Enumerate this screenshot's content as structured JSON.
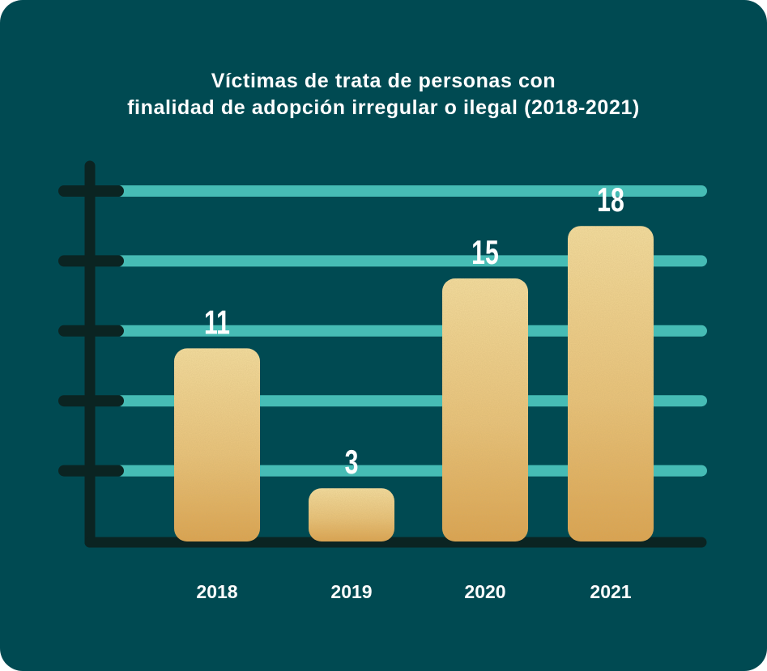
{
  "chart_data": {
    "type": "bar",
    "title_lines": [
      "Víctimas de trata de personas con",
      "finalidad de adopción irregular o ilegal (2018-2021)"
    ],
    "categories": [
      "2018",
      "2019",
      "2020",
      "2021"
    ],
    "values": [
      11,
      3,
      15,
      18
    ],
    "value_labels": [
      "11",
      "3",
      "15",
      "18"
    ],
    "xlabel": "",
    "ylabel": "",
    "ylim": [
      0,
      20
    ],
    "grid": true,
    "gridlines": [
      4,
      8,
      12,
      16,
      20
    ],
    "colors": {
      "background": "#004a52",
      "bar": "#ddaa55",
      "bar_highlight": "#f2d898",
      "gridline": "#46bcb5",
      "axis": "#0b2422",
      "text": "#ffffff"
    }
  }
}
